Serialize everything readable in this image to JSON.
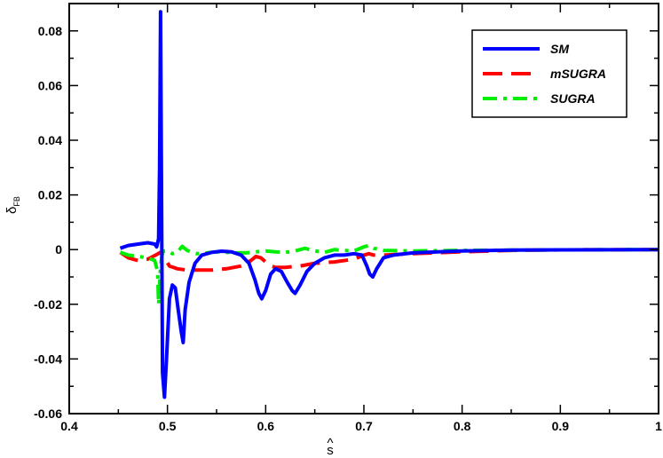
{
  "chart_data": {
    "type": "line",
    "title": "",
    "xlabel": "s",
    "xlabel_hat": "^",
    "ylabel": "δ",
    "ylabel_sub": "FB",
    "xlim": [
      0.4,
      1.0
    ],
    "ylim": [
      -0.06,
      0.09
    ],
    "xticks": [
      0.4,
      0.5,
      0.6,
      0.7,
      0.8,
      0.9,
      1.0
    ],
    "xtick_labels": [
      "0.4",
      "0.5",
      "0.6",
      "0.7",
      "0.8",
      "0.9",
      "1"
    ],
    "yticks": [
      -0.06,
      -0.04,
      -0.02,
      0,
      0.02,
      0.04,
      0.06,
      0.08
    ],
    "ytick_labels": [
      "-0.06",
      "-0.04",
      "-0.02",
      "0",
      "0.02",
      "0.04",
      "0.06",
      "0.08"
    ],
    "grid": false,
    "legend_position": "top-right",
    "series": [
      {
        "name": "SM",
        "color": "#0000ff",
        "dash": "solid",
        "x": [
          0.452,
          0.46,
          0.47,
          0.48,
          0.487,
          0.489,
          0.491,
          0.492,
          0.493,
          0.494,
          0.495,
          0.497,
          0.499,
          0.502,
          0.505,
          0.508,
          0.511,
          0.514,
          0.516,
          0.518,
          0.522,
          0.528,
          0.535,
          0.545,
          0.555,
          0.565,
          0.575,
          0.583,
          0.589,
          0.593,
          0.596,
          0.6,
          0.605,
          0.61,
          0.616,
          0.622,
          0.627,
          0.63,
          0.635,
          0.642,
          0.65,
          0.66,
          0.67,
          0.68,
          0.69,
          0.698,
          0.703,
          0.706,
          0.709,
          0.713,
          0.72,
          0.73,
          0.75,
          0.8,
          0.85,
          0.9,
          1.0
        ],
        "y": [
          0.0005,
          0.0015,
          0.002,
          0.0025,
          0.002,
          0.001,
          0.004,
          0.03,
          0.087,
          0.02,
          -0.045,
          -0.054,
          -0.04,
          -0.018,
          -0.013,
          -0.014,
          -0.022,
          -0.03,
          -0.034,
          -0.022,
          -0.012,
          -0.005,
          -0.002,
          -0.001,
          -0.0006,
          -0.0008,
          -0.002,
          -0.005,
          -0.011,
          -0.016,
          -0.018,
          -0.015,
          -0.009,
          -0.007,
          -0.008,
          -0.012,
          -0.015,
          -0.016,
          -0.013,
          -0.008,
          -0.005,
          -0.003,
          -0.002,
          -0.002,
          -0.0015,
          -0.002,
          -0.006,
          -0.009,
          -0.01,
          -0.007,
          -0.003,
          -0.002,
          -0.0012,
          -0.0005,
          -0.0002,
          -0.0001,
          0
        ]
      },
      {
        "name": "mSUGRA",
        "color": "#ff0000",
        "dash": "dashed",
        "x": [
          0.452,
          0.46,
          0.47,
          0.48,
          0.488,
          0.493,
          0.497,
          0.502,
          0.51,
          0.52,
          0.53,
          0.545,
          0.56,
          0.575,
          0.585,
          0.59,
          0.595,
          0.6,
          0.605,
          0.61,
          0.62,
          0.635,
          0.65,
          0.67,
          0.69,
          0.7,
          0.705,
          0.71,
          0.72,
          0.75,
          0.8,
          0.85,
          0.9,
          1.0
        ],
        "y": [
          -0.001,
          -0.003,
          -0.004,
          -0.0035,
          -0.002,
          -0.001,
          -0.003,
          -0.006,
          -0.007,
          -0.0075,
          -0.0075,
          -0.0075,
          -0.007,
          -0.006,
          -0.004,
          -0.0025,
          -0.003,
          -0.0045,
          -0.006,
          -0.0065,
          -0.0065,
          -0.006,
          -0.005,
          -0.0045,
          -0.0035,
          -0.002,
          -0.0015,
          -0.002,
          -0.002,
          -0.0015,
          -0.0008,
          -0.0003,
          -0.0001,
          0
        ]
      },
      {
        "name": "SUGRA",
        "color": "#00ee00",
        "dash": "dashdot",
        "x": [
          0.452,
          0.46,
          0.47,
          0.48,
          0.487,
          0.49,
          0.491,
          0.493,
          0.495,
          0.497,
          0.5,
          0.505,
          0.51,
          0.515,
          0.52,
          0.525,
          0.53,
          0.54,
          0.55,
          0.56,
          0.57,
          0.58,
          0.59,
          0.6,
          0.61,
          0.62,
          0.63,
          0.64,
          0.65,
          0.66,
          0.67,
          0.68,
          0.69,
          0.7,
          0.705,
          0.71,
          0.72,
          0.75,
          0.8,
          0.9,
          1.0
        ],
        "y": [
          -0.001,
          -0.002,
          -0.0025,
          -0.003,
          -0.004,
          -0.008,
          -0.02,
          -0.006,
          -0.001,
          -0.0005,
          -0.0005,
          -0.0015,
          -0.001,
          0.0012,
          -0.0003,
          -0.001,
          -0.0015,
          -0.0012,
          -0.0008,
          -0.001,
          -0.0012,
          -0.0012,
          -0.0008,
          -0.0005,
          -0.0008,
          -0.001,
          -0.0005,
          0.0005,
          -0.0005,
          -0.001,
          0,
          -0.0003,
          -0.0005,
          0.001,
          0.0015,
          0.0005,
          -0.0003,
          -0.0005,
          -0.0003,
          -0.0001,
          0
        ]
      }
    ]
  }
}
